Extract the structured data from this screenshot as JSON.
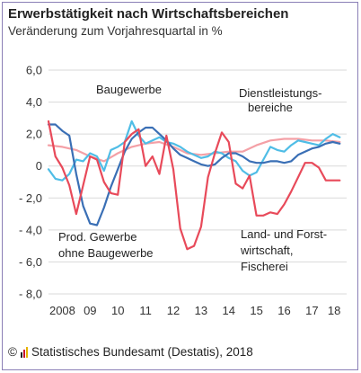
{
  "header": {
    "title": "Erwerbstätigkeit nach Wirtschaftsbereichen",
    "subtitle": "Veränderung zum Vorjahresquartal in %"
  },
  "footer": {
    "copyright": "©",
    "source": "Statistisches Bundesamt (Destatis), 2018",
    "logo_colors": [
      "#222222",
      "#c8102e",
      "#e5b400"
    ]
  },
  "chart_data": {
    "type": "line",
    "title": "Erwerbstätigkeit nach Wirtschaftsbereichen",
    "subtitle": "Veränderung zum Vorjahresquartal in %",
    "xlabel": "",
    "ylabel": "",
    "ylim": [
      -8,
      6
    ],
    "yticks": [
      6,
      4,
      2,
      0,
      -2,
      -4,
      -6,
      -8
    ],
    "ytick_labels": [
      "6,0",
      "4,0",
      "2,0",
      "0",
      "- 2,0",
      "- 4,0",
      "- 6,0",
      "- 8,0"
    ],
    "xlim": [
      2008.0,
      2018.75
    ],
    "xticks": [
      2008.5,
      2009.5,
      2010.5,
      2011.5,
      2012.5,
      2013.5,
      2014.5,
      2015.5,
      2016.5,
      2017.5,
      2018.3
    ],
    "xtick_labels": [
      "2008",
      "09",
      "10",
      "11",
      "12",
      "13",
      "14",
      "15",
      "16",
      "17",
      "18"
    ],
    "grid": true,
    "series": [
      {
        "name": "Baugewerbe",
        "color": "#4fbde6",
        "x": [
          2008.0,
          2008.25,
          2008.5,
          2008.75,
          2009.0,
          2009.25,
          2009.5,
          2009.75,
          2010.0,
          2010.25,
          2010.5,
          2010.75,
          2011.0,
          2011.25,
          2011.5,
          2011.75,
          2012.0,
          2012.25,
          2012.5,
          2012.75,
          2013.0,
          2013.25,
          2013.5,
          2013.75,
          2014.0,
          2014.25,
          2014.5,
          2014.75,
          2015.0,
          2015.25,
          2015.5,
          2015.75,
          2016.0,
          2016.25,
          2016.5,
          2016.75,
          2017.0,
          2017.25,
          2017.5,
          2017.75,
          2018.0,
          2018.25,
          2018.5
        ],
        "y": [
          -0.2,
          -0.8,
          -0.9,
          -0.5,
          0.4,
          0.3,
          0.8,
          0.6,
          -0.3,
          1.0,
          1.2,
          1.5,
          2.8,
          1.9,
          1.4,
          1.6,
          1.8,
          1.5,
          1.4,
          1.2,
          0.9,
          0.7,
          0.5,
          0.6,
          0.9,
          0.8,
          0.5,
          0.3,
          -0.3,
          -0.6,
          -0.4,
          0.4,
          1.2,
          1.0,
          0.9,
          1.3,
          1.6,
          1.5,
          1.4,
          1.3,
          1.7,
          2.0,
          1.8
        ]
      },
      {
        "name": "Dienstleistungsbereiche",
        "color": "#f4a0a6",
        "x": [
          2008.0,
          2008.5,
          2009.0,
          2009.5,
          2010.0,
          2010.5,
          2011.0,
          2011.5,
          2012.0,
          2012.5,
          2013.0,
          2013.5,
          2014.0,
          2014.5,
          2015.0,
          2015.5,
          2016.0,
          2016.5,
          2017.0,
          2017.5,
          2018.0,
          2018.5
        ],
        "y": [
          1.3,
          1.2,
          1.0,
          0.6,
          0.3,
          0.8,
          1.2,
          1.4,
          1.5,
          1.2,
          0.8,
          0.7,
          0.8,
          0.9,
          0.9,
          1.3,
          1.6,
          1.7,
          1.7,
          1.6,
          1.6,
          1.5
        ]
      },
      {
        "name": "Prod. Gewerbe ohne Baugewerbe",
        "color": "#3a6fb5",
        "x": [
          2008.0,
          2008.25,
          2008.5,
          2008.75,
          2009.0,
          2009.25,
          2009.5,
          2009.75,
          2010.0,
          2010.25,
          2010.5,
          2010.75,
          2011.0,
          2011.25,
          2011.5,
          2011.75,
          2012.0,
          2012.25,
          2012.5,
          2012.75,
          2013.0,
          2013.25,
          2013.5,
          2013.75,
          2014.0,
          2014.25,
          2014.5,
          2014.75,
          2015.0,
          2015.25,
          2015.5,
          2015.75,
          2016.0,
          2016.25,
          2016.5,
          2016.75,
          2017.0,
          2017.25,
          2017.5,
          2017.75,
          2018.0,
          2018.25,
          2018.5
        ],
        "y": [
          2.6,
          2.6,
          2.2,
          1.9,
          -0.5,
          -2.5,
          -3.6,
          -3.7,
          -2.6,
          -1.3,
          -0.2,
          0.9,
          1.7,
          2.1,
          2.4,
          2.4,
          2.0,
          1.6,
          1.1,
          0.7,
          0.5,
          0.3,
          0.1,
          0.0,
          0.1,
          0.5,
          0.8,
          0.8,
          0.6,
          0.3,
          0.2,
          0.2,
          0.3,
          0.3,
          0.2,
          0.3,
          0.7,
          0.9,
          1.1,
          1.2,
          1.4,
          1.5,
          1.4
        ]
      },
      {
        "name": "Land- und Forstwirtschaft, Fischerei",
        "color": "#e84a5a",
        "x": [
          2008.0,
          2008.25,
          2008.5,
          2008.75,
          2009.0,
          2009.25,
          2009.5,
          2009.75,
          2010.0,
          2010.25,
          2010.5,
          2010.75,
          2011.0,
          2011.25,
          2011.5,
          2011.75,
          2012.0,
          2012.25,
          2012.5,
          2012.75,
          2013.0,
          2013.25,
          2013.5,
          2013.75,
          2014.0,
          2014.25,
          2014.5,
          2014.75,
          2015.0,
          2015.25,
          2015.5,
          2015.75,
          2016.0,
          2016.25,
          2016.5,
          2016.75,
          2017.0,
          2017.25,
          2017.5,
          2017.75,
          2018.0,
          2018.25,
          2018.5
        ],
        "y": [
          2.8,
          0.6,
          -0.1,
          -1.2,
          -3.0,
          -1.2,
          0.6,
          0.4,
          -1.0,
          -1.7,
          -1.8,
          1.5,
          2.0,
          2.3,
          0.0,
          0.6,
          -0.5,
          1.9,
          -0.2,
          -3.9,
          -5.2,
          -5.0,
          -3.8,
          -0.7,
          0.8,
          2.1,
          1.5,
          -1.1,
          -1.4,
          -0.6,
          -3.1,
          -3.1,
          -2.9,
          -3.0,
          -2.4,
          -1.6,
          -0.7,
          0.2,
          0.2,
          -0.1,
          -0.9,
          -0.9,
          -0.9
        ]
      }
    ],
    "annotations": [
      {
        "text": "Baugewerbe",
        "series": "Baugewerbe"
      },
      {
        "text": "Dienstleistungs-",
        "series": "Dienstleistungsbereiche"
      },
      {
        "text": "bereiche",
        "series": "Dienstleistungsbereiche"
      },
      {
        "text": "Prod. Gewerbe",
        "series": "Prod. Gewerbe ohne Baugewerbe"
      },
      {
        "text": "ohne Baugewerbe",
        "series": "Prod. Gewerbe ohne Baugewerbe"
      },
      {
        "text": "Land- und Forst-",
        "series": "Land- und Forstwirtschaft, Fischerei"
      },
      {
        "text": "wirtschaft,",
        "series": "Land- und Forstwirtschaft, Fischerei"
      },
      {
        "text": "Fischerei",
        "series": "Land- und Forstwirtschaft, Fischerei"
      }
    ]
  }
}
